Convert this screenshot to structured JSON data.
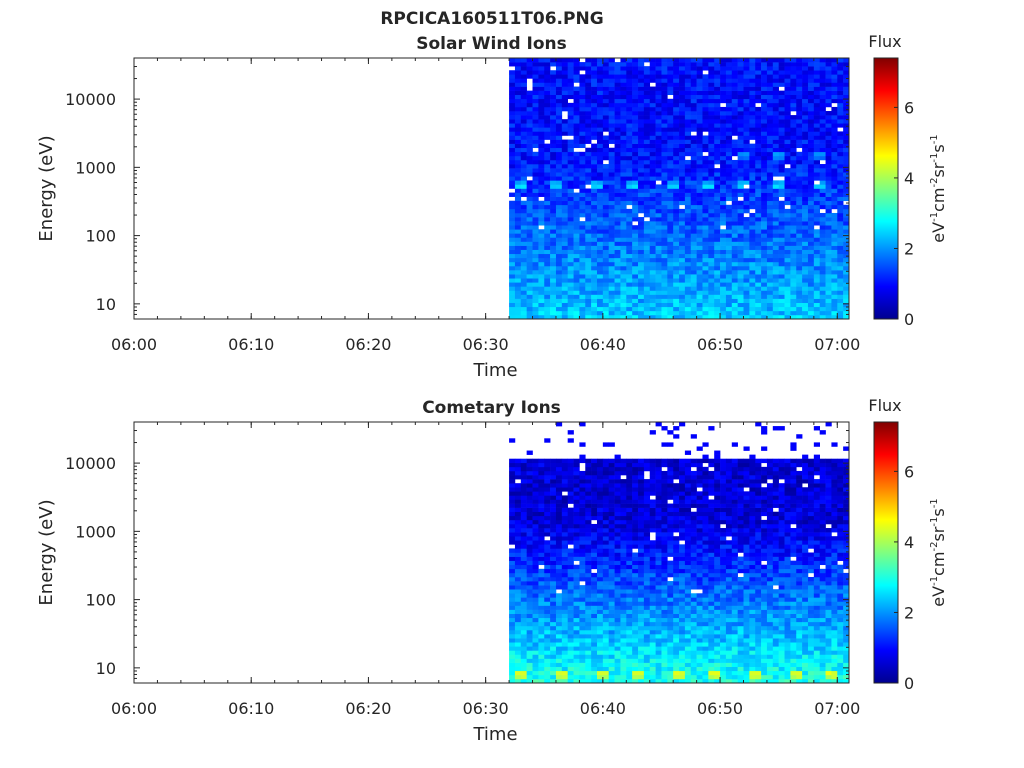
{
  "figure": {
    "title": "RPCICA160511T06.PNG"
  },
  "colors": {
    "axis": "#262626",
    "colormap": "jet"
  },
  "chart_data": [
    {
      "type": "heatmap",
      "title": "Solar Wind Ions",
      "xlabel": "Time",
      "ylabel": "Energy (eV)",
      "x_ticks": [
        "06:00",
        "06:10",
        "06:20",
        "06:30",
        "06:40",
        "06:50",
        "07:00"
      ],
      "x_range": [
        "06:00",
        "07:01"
      ],
      "data_start": "06:32",
      "y_scale": "log",
      "y_range": [
        6,
        40000
      ],
      "y_ticks": [
        "10",
        "100",
        "1000",
        "10000"
      ],
      "colorbar": {
        "title": "Flux",
        "unit": "eV-1cm-2sr-1s-1",
        "ticks": [
          "0",
          "2",
          "4",
          "6"
        ],
        "range": [
          0,
          7.4
        ]
      },
      "features": {
        "background_level": 1.0,
        "low_energy_level": 2.4,
        "periodic_peaks": {
          "energy_eV": 550,
          "level": 2.7,
          "times": [
            "06:33",
            "06:36",
            "06:39.5",
            "06:42.5",
            "06:46",
            "06:49",
            "06:52",
            "06:55",
            "06:58.5"
          ]
        },
        "secondary_peaks": {
          "energy_eV": 1500,
          "level": 2.2,
          "times": [
            "06:52",
            "06:55",
            "06:58.5"
          ]
        }
      }
    },
    {
      "type": "heatmap",
      "title": "Cometary Ions",
      "xlabel": "Time",
      "ylabel": "Energy (eV)",
      "x_ticks": [
        "06:00",
        "06:10",
        "06:20",
        "06:30",
        "06:40",
        "06:50",
        "07:00"
      ],
      "x_range": [
        "06:00",
        "07:01"
      ],
      "data_start": "06:32",
      "y_scale": "log",
      "y_range": [
        6,
        40000
      ],
      "y_ticks": [
        "10",
        "100",
        "1000",
        "10000"
      ],
      "colorbar": {
        "title": "Flux",
        "unit": "eV-1cm-2sr-1s-1",
        "ticks": [
          "0",
          "2",
          "4",
          "6"
        ],
        "range": [
          0,
          7.4
        ]
      },
      "features": {
        "background_level": 0.6,
        "low_energy_level": 3.0,
        "upper_cutoff_eV": 11000,
        "periodic_peaks": {
          "energy_eV": 8,
          "level": 4.6,
          "times": [
            "06:33",
            "06:36.5",
            "06:40",
            "06:43",
            "06:46.5",
            "06:49.5",
            "06:53",
            "06:56.5",
            "06:59.5"
          ]
        }
      }
    }
  ]
}
